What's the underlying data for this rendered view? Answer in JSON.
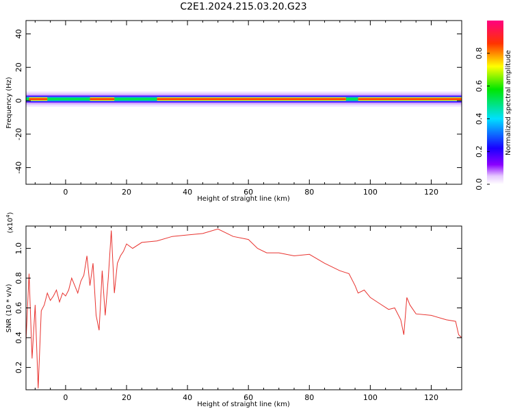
{
  "title": "C2E1.2024.215.03.20.G23",
  "colors": {
    "snr_line": "#e8312d",
    "axes": "#000000"
  },
  "chart_data": [
    {
      "type": "heatmap",
      "xlabel": "Height of straight line (km)",
      "ylabel": "Frequency (Hz)",
      "xlim": [
        -13,
        130
      ],
      "ylim": [
        -50,
        48
      ],
      "xticks": [
        "0",
        "20",
        "40",
        "60",
        "80",
        "100",
        "120"
      ],
      "yticks": [
        "40",
        "20",
        "0",
        "-20",
        "-40"
      ],
      "colorbar": {
        "label": "Normalized spectral amplitude",
        "range": [
          0.0,
          1.0
        ],
        "ticks": [
          "0.0",
          "0.2",
          "0.4",
          "0.6",
          "0.8"
        ],
        "colormap": "rainbow (white-violet-blue-cyan-green-yellow-red-magenta)"
      },
      "band": {
        "center_hz": 1,
        "description": "narrow band near 0-2 Hz, peak amplitude along center line",
        "peak_segments_km": [
          [
            -12,
            -6
          ],
          [
            8,
            16
          ],
          [
            30,
            92
          ],
          [
            96,
            130
          ]
        ]
      }
    },
    {
      "type": "line",
      "xlabel": "Height of straight line (km)",
      "ylabel": "SNR (10 * v/v)",
      "multiplier": "(x10^4)",
      "multiplier_base": "(x10",
      "multiplier_exp": "4",
      "multiplier_close": ")",
      "xlim": [
        -13,
        130
      ],
      "ylim": [
        0.05,
        1.15
      ],
      "xticks": [
        "0",
        "20",
        "40",
        "60",
        "80",
        "100",
        "120"
      ],
      "yticks": [
        "0.2",
        "0.4",
        "0.6",
        "0.8",
        "1.0"
      ],
      "series": [
        {
          "x": [
            -13,
            -12,
            -11,
            -10,
            -9,
            -8,
            -7,
            -6,
            -5,
            -4,
            -3,
            -2,
            -1,
            0,
            1,
            2,
            3,
            4,
            5,
            6,
            7,
            8,
            9,
            10,
            11,
            12,
            13,
            14,
            15,
            16,
            17,
            18,
            19,
            20,
            22,
            25,
            30,
            35,
            40,
            45,
            50,
            55,
            60,
            63,
            66,
            70,
            75,
            80,
            85,
            90,
            93,
            95,
            96,
            98,
            100,
            103,
            106,
            108,
            110,
            111,
            112,
            113,
            115,
            120,
            125,
            128,
            129,
            130
          ],
          "y": [
            0.38,
            0.83,
            0.26,
            0.62,
            0.06,
            0.58,
            0.62,
            0.7,
            0.65,
            0.68,
            0.72,
            0.64,
            0.7,
            0.68,
            0.72,
            0.8,
            0.75,
            0.7,
            0.78,
            0.82,
            0.95,
            0.75,
            0.9,
            0.55,
            0.45,
            0.85,
            0.55,
            0.8,
            1.12,
            0.7,
            0.9,
            0.95,
            0.98,
            1.03,
            1.0,
            1.04,
            1.05,
            1.08,
            1.09,
            1.1,
            1.13,
            1.08,
            1.06,
            1.0,
            0.97,
            0.97,
            0.95,
            0.96,
            0.9,
            0.85,
            0.83,
            0.75,
            0.7,
            0.72,
            0.67,
            0.63,
            0.59,
            0.6,
            0.52,
            0.42,
            0.67,
            0.62,
            0.56,
            0.55,
            0.52,
            0.51,
            0.42,
            0.4
          ]
        }
      ]
    }
  ]
}
